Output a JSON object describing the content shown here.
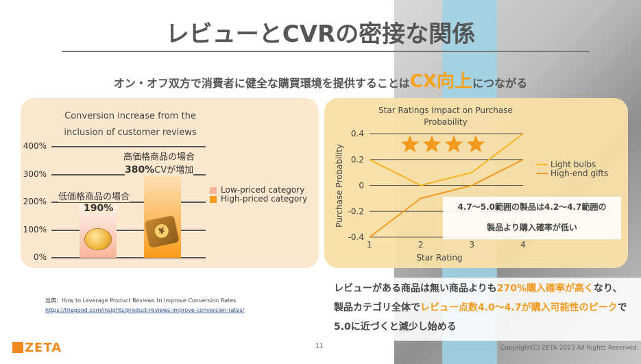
{
  "slide": {
    "title": "レビューとCVRの密接な関係",
    "subtitle_pre": "オン・オフ双方で消費者に健全な購買環境を提供することは",
    "subtitle_highlight": "CX向上",
    "subtitle_post": "につながる",
    "page_number": "11",
    "copyright": "Copyright(C) ZETA 2023 All Rights Reserved.",
    "logo_text": "ZETA"
  },
  "left_chart_labels": {
    "low_annotation": "低価格商品の場合",
    "low_value_text": "190%",
    "high_annotation": "高価格商品の場合",
    "high_value_text": "380%",
    "high_value_suffix": "CVが増加"
  },
  "right_chart_note": {
    "line1": "4.7〜5.0範囲の製品は4.2〜4.7範囲の",
    "line2": "製品より購入確率が低い"
  },
  "summary": {
    "s1": "レビューがある商品は無い商品よりも",
    "h1": "270%購入確率が高く",
    "s2": "なり、",
    "s3": "製品カテゴリ全体で",
    "h2": "レビュー点数4.0〜4.7が購入可能性のピーク",
    "s4": "で",
    "s5": "5.0に近づくと減少し始める"
  },
  "source": {
    "label": "出典：How to Leverage Product Reviews to Improve Conversion Rates",
    "url": "https://thegood.com/insights/product-reviews-improve-conversion-rates/"
  },
  "chart_data": [
    {
      "type": "bar",
      "title_line1": "Conversion increase from the",
      "title_line2": "inclusion of customer reviews",
      "categories": [
        "Low-priced category",
        "High-priced category"
      ],
      "values": [
        190,
        380
      ],
      "ylim": [
        0,
        400
      ],
      "yticks": [
        "0%",
        "100%",
        "200%",
        "300%",
        "400%"
      ],
      "legend": [
        "Low-priced category",
        "High-priced category"
      ],
      "legend_position": "right",
      "colors": [
        "#f8b59a",
        "#f99c1b"
      ],
      "grid": true
    },
    {
      "type": "line",
      "title_line1": "Star Ratings Impact on Purchase",
      "title_line2": "Probability",
      "xlabel": "Star Rating",
      "ylabel": "Purchase Probability",
      "x": [
        1,
        2,
        3,
        4
      ],
      "xticks": [
        "1",
        "2",
        "3",
        "4"
      ],
      "yticks": [
        "-0.4",
        "-0.2",
        "0",
        "0.2",
        "0.4"
      ],
      "ylim": [
        -0.4,
        0.4
      ],
      "series": [
        {
          "name": "Light bulbs",
          "values": [
            0.2,
            0.0,
            0.1,
            0.4
          ],
          "color": "#f7b21e"
        },
        {
          "name": "High-end gifts",
          "values": [
            -0.4,
            -0.1,
            0.0,
            0.2
          ],
          "color": "#f39a1e"
        }
      ],
      "legend_position": "right",
      "grid": true,
      "stars": 4
    }
  ]
}
